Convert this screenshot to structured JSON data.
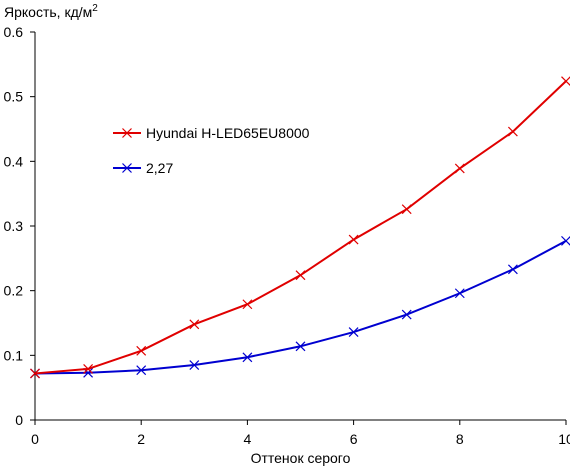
{
  "chart_data": {
    "type": "line",
    "title": "",
    "ylabel": "Яркость, кд/м",
    "ylabel_superscript": "2",
    "xlabel": "Оттенок серого",
    "xlim": [
      0,
      10
    ],
    "ylim": [
      0,
      0.6
    ],
    "x_ticks": [
      "0",
      "2",
      "4",
      "6",
      "8",
      "10"
    ],
    "y_ticks": [
      "0",
      "0.1",
      "0.2",
      "0.3",
      "0.4",
      "0.5",
      "0.6"
    ],
    "grid": false,
    "legend_position": "upper-left-inside",
    "x": [
      0,
      1,
      2,
      3,
      4,
      5,
      6,
      7,
      8,
      9,
      10
    ],
    "series": [
      {
        "name": "Hyundai H-LED65EU8000",
        "color": "#e00000",
        "marker": "x",
        "values": [
          0.072,
          0.079,
          0.107,
          0.148,
          0.179,
          0.224,
          0.279,
          0.326,
          0.389,
          0.446,
          0.524
        ]
      },
      {
        "name": "2,27",
        "color": "#0000d0",
        "marker": "x",
        "values": [
          0.072,
          0.073,
          0.077,
          0.085,
          0.097,
          0.114,
          0.136,
          0.163,
          0.196,
          0.233,
          0.277
        ]
      }
    ]
  }
}
